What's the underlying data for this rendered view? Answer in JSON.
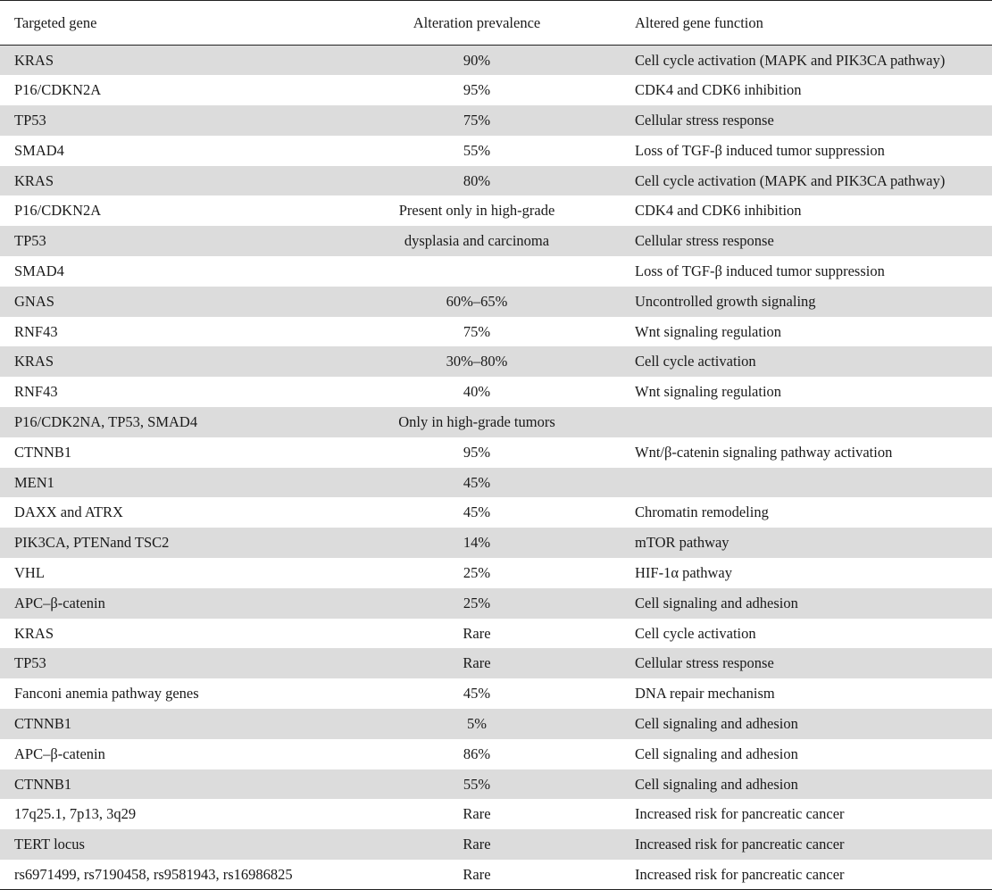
{
  "table": {
    "headers": [
      "Targeted gene",
      "Alteration prevalence",
      "Altered gene function"
    ],
    "rows": [
      [
        "KRAS",
        "90%",
        "Cell cycle activation (MAPK and PIK3CA pathway)"
      ],
      [
        "P16/CDKN2A",
        "95%",
        "CDK4 and CDK6 inhibition"
      ],
      [
        "TP53",
        "75%",
        "Cellular stress response"
      ],
      [
        "SMAD4",
        "55%",
        "Loss of TGF-β induced tumor suppression"
      ],
      [
        "KRAS",
        "80%",
        "Cell cycle activation (MAPK and PIK3CA pathway)"
      ],
      [
        "P16/CDKN2A",
        "Present only in high-grade",
        "CDK4 and CDK6 inhibition"
      ],
      [
        "TP53",
        "dysplasia and carcinoma",
        "Cellular stress response"
      ],
      [
        "SMAD4",
        "",
        "Loss of TGF-β induced tumor suppression"
      ],
      [
        "GNAS",
        "60%–65%",
        "Uncontrolled growth signaling"
      ],
      [
        "RNF43",
        "75%",
        "Wnt signaling regulation"
      ],
      [
        "KRAS",
        "30%–80%",
        "Cell cycle activation"
      ],
      [
        "RNF43",
        "40%",
        "Wnt signaling regulation"
      ],
      [
        "P16/CDK2NA, TP53, SMAD4",
        "Only in high-grade tumors",
        ""
      ],
      [
        "CTNNB1",
        "95%",
        "Wnt/β-catenin signaling pathway activation"
      ],
      [
        "MEN1",
        "45%",
        ""
      ],
      [
        "DAXX and ATRX",
        "45%",
        "Chromatin remodeling"
      ],
      [
        "PIK3CA, PTENand TSC2",
        "14%",
        "mTOR pathway"
      ],
      [
        "VHL",
        "25%",
        "HIF-1α pathway"
      ],
      [
        "APC–β-catenin",
        "25%",
        "Cell signaling and adhesion"
      ],
      [
        "KRAS",
        "Rare",
        "Cell cycle activation"
      ],
      [
        "TP53",
        "Rare",
        "Cellular stress response"
      ],
      [
        "Fanconi anemia pathway genes",
        "45%",
        "DNA repair mechanism"
      ],
      [
        "CTNNB1",
        "5%",
        "Cell signaling and adhesion"
      ],
      [
        "APC–β-catenin",
        "86%",
        "Cell signaling and adhesion"
      ],
      [
        "CTNNB1",
        "55%",
        "Cell signaling and adhesion"
      ],
      [
        "17q25.1, 7p13, 3q29",
        "Rare",
        "Increased risk for pancreatic cancer"
      ],
      [
        "TERT locus",
        "Rare",
        "Increased risk for pancreatic cancer"
      ],
      [
        "rs6971499, rs7190458, rs9581943, rs16986825",
        "Rare",
        "Increased risk for pancreatic cancer"
      ]
    ]
  },
  "colors": {
    "row_shade": "#dcdcdc",
    "rule": "#222222",
    "text": "#1a1a1a"
  }
}
